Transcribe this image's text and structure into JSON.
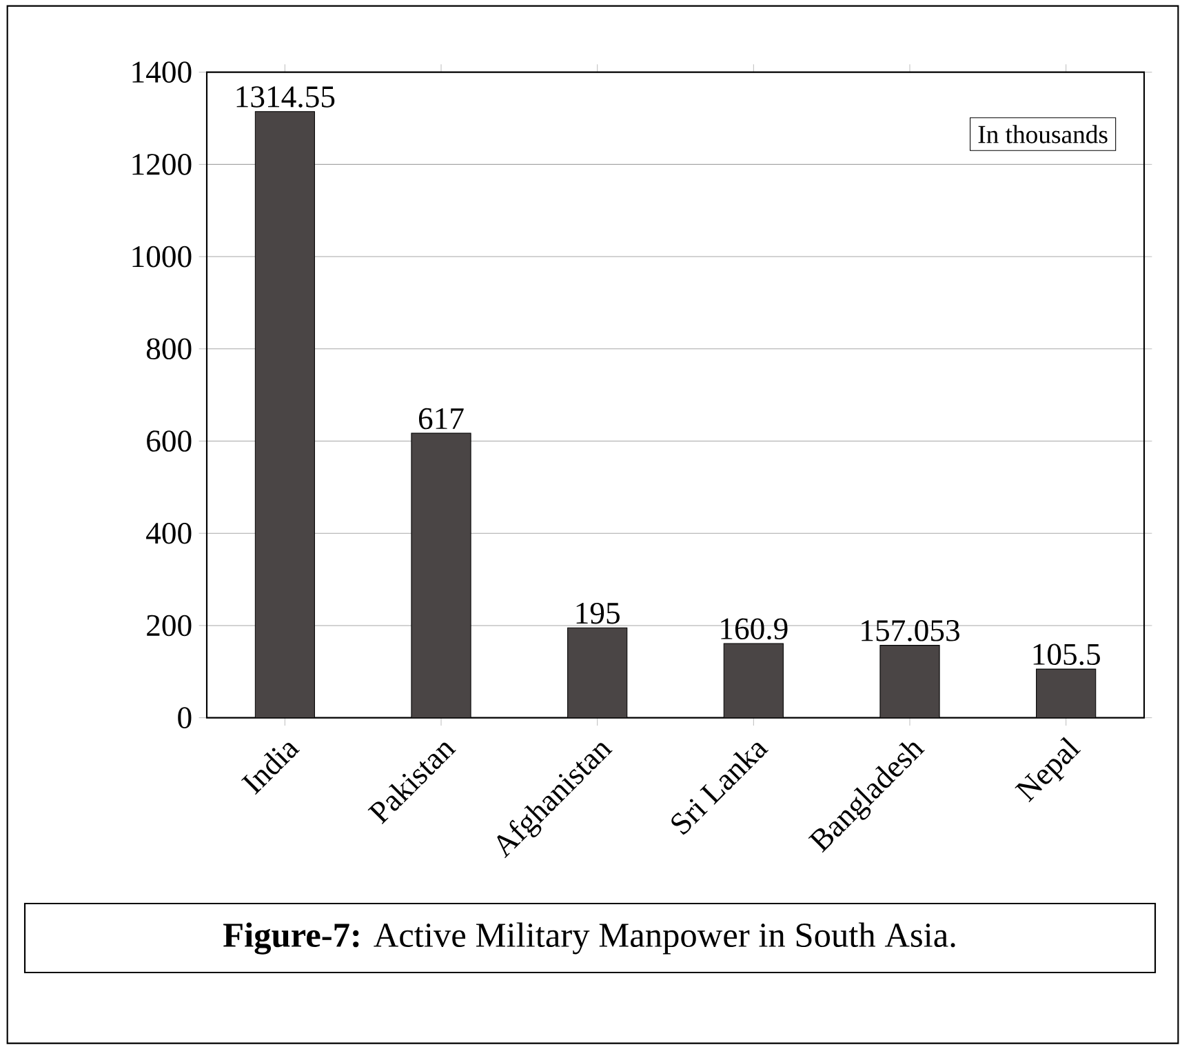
{
  "chart_data": {
    "type": "bar",
    "title": "**Figure-7:** Active Military Manpower in South Asia.",
    "categories": [
      "India",
      "Pakistan",
      "Afghanistan",
      "Sri Lanka",
      "Bangladesh",
      "Nepal"
    ],
    "values": [
      1314.55,
      617,
      195,
      160.9,
      157.053,
      105.5
    ],
    "color": "#4a4545",
    "ylim": [
      0,
      1400
    ],
    "yticks": [
      0,
      200,
      400,
      600,
      800,
      1000,
      1200,
      1400
    ],
    "grid": "y",
    "data_labels": true,
    "annotations": [
      "In thousands"
    ]
  }
}
